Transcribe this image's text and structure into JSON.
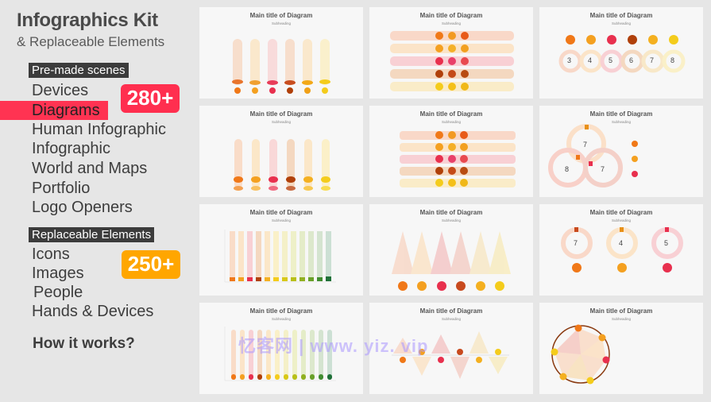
{
  "header": {
    "title": "Infographics Kit",
    "subtitle": "& Replaceable Elements"
  },
  "premade": {
    "label": "Pre-made scenes",
    "items": [
      "Devices",
      "Diagrams",
      "Human Infographic",
      "Infographic",
      "World and Maps",
      "Portfolio",
      "Logo Openers"
    ],
    "count": "280+"
  },
  "replaceable": {
    "label": "Replaceable Elements",
    "items": [
      "Icons",
      "Images",
      "People",
      "Hands & Devices"
    ],
    "count": "250+"
  },
  "how_it_works": "How it works?",
  "thumbnail": {
    "title": "Main title of Diagram",
    "subheading": "Subheading"
  },
  "ring_numbers_a": [
    "3",
    "4",
    "5",
    "6",
    "7",
    "8"
  ],
  "venn_numbers": [
    "7",
    "8",
    "7"
  ],
  "ring_numbers_b": [
    "7",
    "4",
    "5"
  ],
  "watermark": "忆客网 | www. yiz. vip",
  "colors": {
    "accent_red": "#ff2f4f",
    "accent_orange": "#ffa600"
  }
}
